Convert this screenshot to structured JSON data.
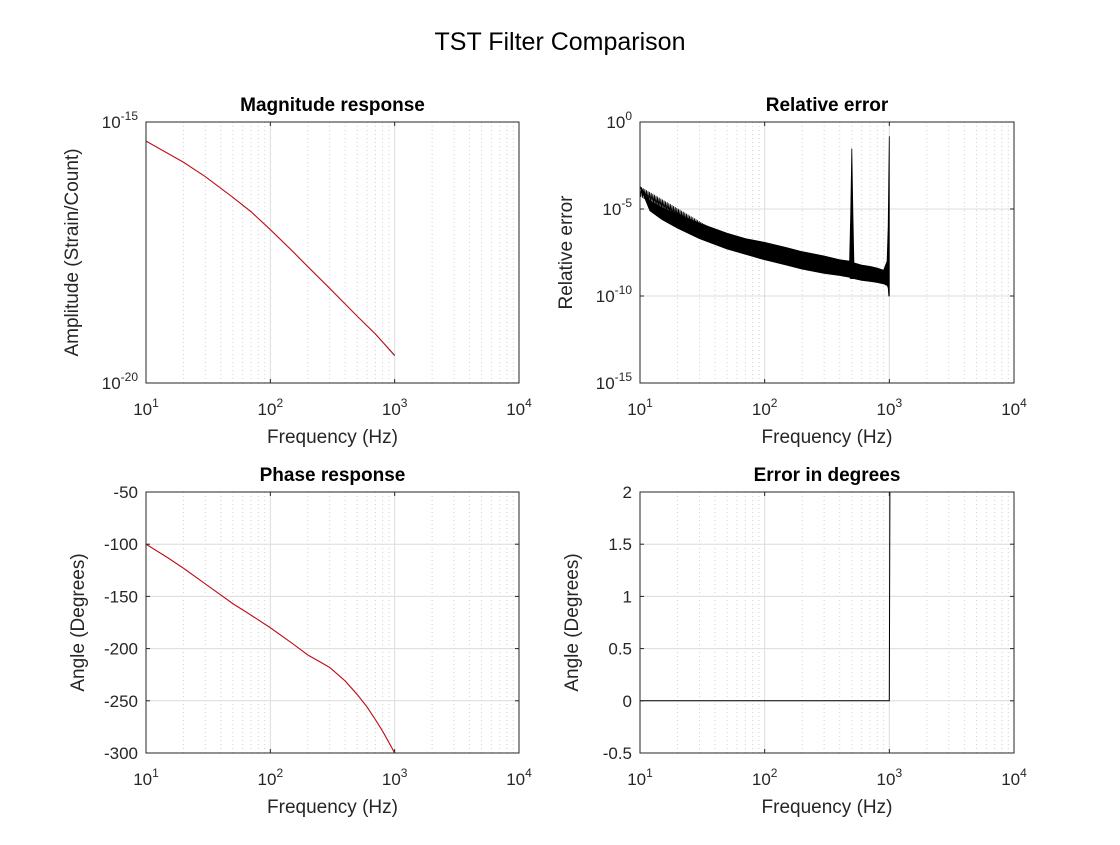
{
  "figure": {
    "title": "TST Filter Comparison"
  },
  "colors": {
    "reference": "#00a0e0",
    "test": "#e00000",
    "error": "#000000",
    "grid": "#dcdcdc",
    "axis": "#262626"
  },
  "chart_data": [
    {
      "id": "magnitude",
      "type": "line",
      "title": "Magnitude response",
      "xlabel": "Frequency (Hz)",
      "ylabel": "Amplitude (Strain/Count)",
      "xscale": "log",
      "yscale": "log",
      "xlim": [
        10,
        10000
      ],
      "ylim": [
        1e-20,
        1e-15
      ],
      "xticks": [
        {
          "base": "10",
          "exp": "1"
        },
        {
          "base": "10",
          "exp": "2"
        },
        {
          "base": "10",
          "exp": "3"
        },
        {
          "base": "10",
          "exp": "4"
        }
      ],
      "yticks": [
        {
          "base": "10",
          "exp": "-20"
        },
        {
          "base": "10",
          "exp": "-15"
        }
      ],
      "grid": true,
      "series": [
        {
          "color": "#00a0e0",
          "x": [
            10,
            15,
            20,
            30,
            50,
            70,
            100,
            150,
            200,
            300,
            500,
            700,
            1000
          ],
          "y": [
            4.3e-16,
            2.5e-16,
            1.7e-16,
            9e-17,
            3.6e-17,
            1.9e-17,
            8.7e-18,
            3.4e-18,
            1.7e-18,
            6.5e-19,
            1.9e-19,
            8.7e-20,
            3.3e-20
          ]
        },
        {
          "color": "#e00000",
          "x": [
            10,
            15,
            20,
            30,
            50,
            70,
            100,
            150,
            200,
            300,
            500,
            700,
            1000
          ],
          "y": [
            4.3e-16,
            2.5e-16,
            1.7e-16,
            9e-17,
            3.6e-17,
            1.9e-17,
            8.7e-18,
            3.4e-18,
            1.7e-18,
            6.5e-19,
            1.9e-19,
            8.7e-20,
            3.4e-20
          ]
        }
      ]
    },
    {
      "id": "relerror",
      "type": "line",
      "title": "Relative error",
      "xlabel": "Frequency (Hz)",
      "ylabel": "Relative error",
      "xscale": "log",
      "yscale": "log",
      "xlim": [
        10,
        10000
      ],
      "ylim": [
        1e-15,
        1
      ],
      "xticks": [
        {
          "base": "10",
          "exp": "1"
        },
        {
          "base": "10",
          "exp": "2"
        },
        {
          "base": "10",
          "exp": "3"
        },
        {
          "base": "10",
          "exp": "4"
        }
      ],
      "yticks": [
        {
          "base": "10",
          "exp": "-15"
        },
        {
          "base": "10",
          "exp": "-10"
        },
        {
          "base": "10",
          "exp": "-5"
        },
        {
          "base": "10",
          "exp": "0"
        }
      ],
      "grid": true,
      "series": [
        {
          "color": "#000000",
          "x": [
            10,
            12,
            15,
            20,
            30,
            50,
            70,
            100,
            150,
            200,
            300,
            400,
            480,
            490,
            500,
            510,
            520,
            600,
            700,
            800,
            900,
            960,
            980,
            990,
            1000
          ],
          "y": [
            0.0002,
            3e-05,
            1.2e-05,
            5e-06,
            1.5e-06,
            4e-07,
            2e-07,
            1.2e-07,
            6e-08,
            3.5e-08,
            2e-08,
            1.2e-08,
            1e-08,
            5e-06,
            0.03,
            5e-06,
            8e-09,
            6e-09,
            5e-09,
            4e-09,
            3e-09,
            1e-08,
            1e-06,
            0.001,
            0.15
          ],
          "lower": [
            0.0002,
            8e-06,
            2.5e-06,
            8e-07,
            2e-07,
            5e-08,
            2.5e-08,
            1.2e-08,
            6e-09,
            3.5e-09,
            2e-09,
            1.5e-09,
            1.2e-09,
            1e-09,
            1e-09,
            1e-09,
            1e-09,
            8e-10,
            7e-10,
            6e-10,
            5e-10,
            4e-10,
            3e-10,
            1e-10,
            1e-10
          ]
        }
      ]
    },
    {
      "id": "phase",
      "type": "line",
      "title": "Phase response",
      "xlabel": "Frequency (Hz)",
      "ylabel": "Angle (Degrees)",
      "xscale": "log",
      "yscale": "linear",
      "xlim": [
        10,
        10000
      ],
      "ylim": [
        -300,
        -50
      ],
      "xticks": [
        {
          "base": "10",
          "exp": "1"
        },
        {
          "base": "10",
          "exp": "2"
        },
        {
          "base": "10",
          "exp": "3"
        },
        {
          "base": "10",
          "exp": "4"
        }
      ],
      "yticks": [
        "-300",
        "-250",
        "-200",
        "-150",
        "-100",
        "-50"
      ],
      "grid": true,
      "series": [
        {
          "color": "#00a0e0",
          "x": [
            10,
            15,
            20,
            30,
            50,
            70,
            100,
            150,
            200,
            300,
            400,
            500,
            600,
            700,
            800,
            900,
            1000
          ],
          "y": [
            -100,
            -113,
            -123,
            -138,
            -157,
            -168,
            -180,
            -195,
            -206,
            -218,
            -231,
            -244,
            -256,
            -268,
            -279,
            -290,
            -300
          ]
        },
        {
          "color": "#e00000",
          "x": [
            10,
            15,
            20,
            30,
            50,
            70,
            100,
            150,
            200,
            300,
            400,
            500,
            600,
            700,
            800,
            900,
            1000
          ],
          "y": [
            -100,
            -113,
            -123,
            -138,
            -157,
            -168,
            -180,
            -195,
            -206,
            -218,
            -231,
            -244,
            -256,
            -268,
            -279,
            -290,
            -300
          ]
        }
      ]
    },
    {
      "id": "degerror",
      "type": "line",
      "title": "Error in degrees",
      "xlabel": "Frequency (Hz)",
      "ylabel": "Angle (Degrees)",
      "xscale": "log",
      "yscale": "linear",
      "xlim": [
        10,
        10000
      ],
      "ylim": [
        -0.5,
        2
      ],
      "xticks": [
        {
          "base": "10",
          "exp": "1"
        },
        {
          "base": "10",
          "exp": "2"
        },
        {
          "base": "10",
          "exp": "3"
        },
        {
          "base": "10",
          "exp": "4"
        }
      ],
      "yticks": [
        "-0.5",
        "0",
        "0.5",
        "1",
        "1.5",
        "2"
      ],
      "grid": true,
      "series": [
        {
          "color": "#000000",
          "x": [
            10,
            200,
            500,
            900,
            990,
            1000,
            1010
          ],
          "y": [
            0,
            0,
            0,
            0,
            0,
            0,
            2
          ]
        }
      ]
    }
  ]
}
